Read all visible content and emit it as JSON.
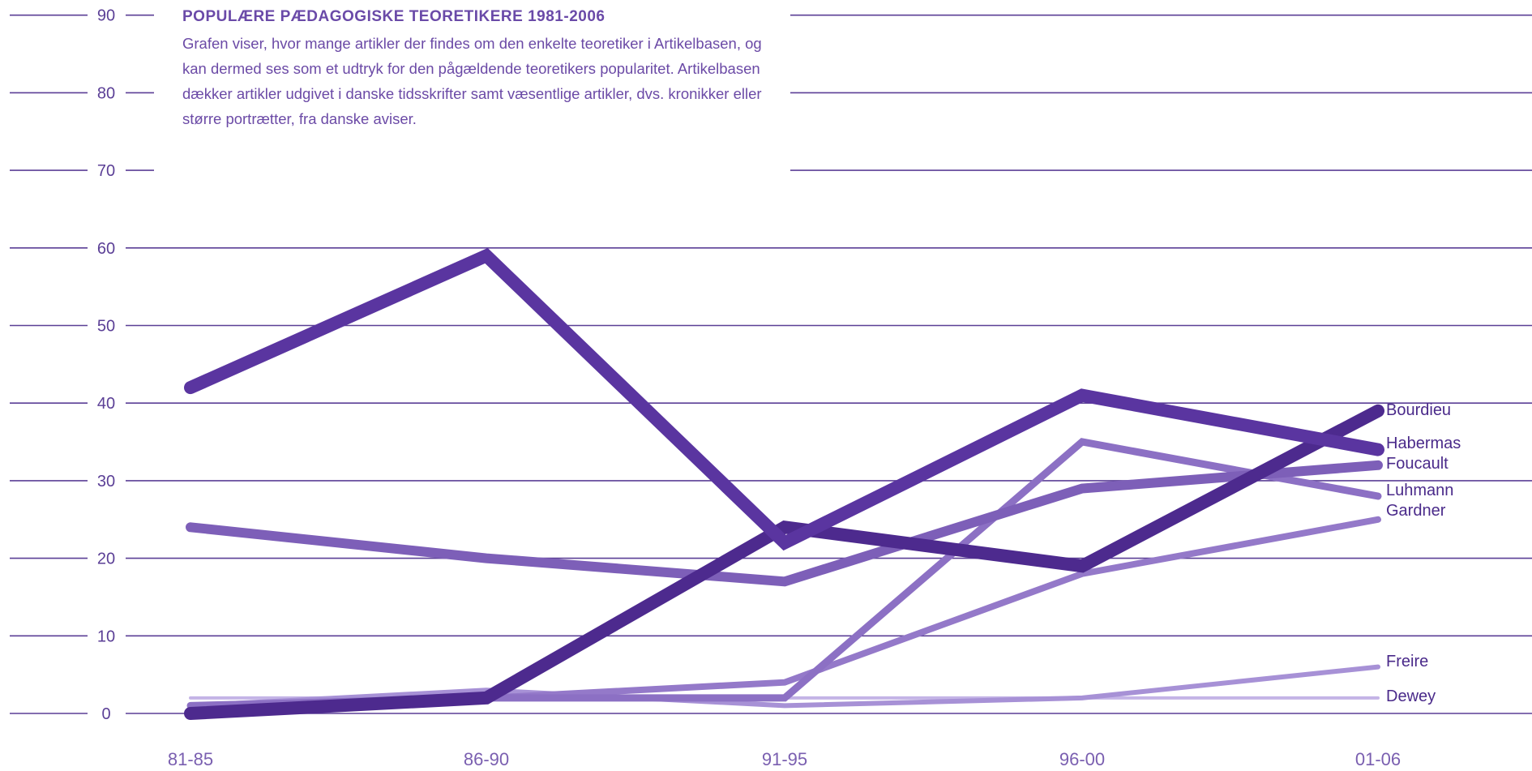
{
  "caption": {
    "title": "POPULÆRE PÆDAGOGISKE TEORETIKERE 1981-2006",
    "text": "Grafen viser, hvor mange artikler der findes om den enkelte teoretiker i Artikelbasen, og kan dermed ses som et udtryk for den pågældende teoretikers popularitet. Artikelbasen dækker artikler udgivet i danske tidsskrifter samt væsentlige artikler, dvs. kronikker eller større portrætter, fra danske aviser."
  },
  "chart_data": {
    "type": "line",
    "title": "POPULÆRE PÆDAGOGISKE TEORETIKERE 1981-2006",
    "categories": [
      "81-85",
      "86-90",
      "91-95",
      "96-00",
      "01-06"
    ],
    "yticks": [
      0,
      10,
      20,
      30,
      40,
      50,
      60,
      70,
      80,
      90
    ],
    "ylim": [
      0,
      90
    ],
    "grid": true,
    "legend": "direct labels at right end of lines",
    "series": [
      {
        "name": "Habermas",
        "values": [
          42,
          59,
          22,
          41,
          34
        ],
        "color": "#5a35a0",
        "width": 16
      },
      {
        "name": "Bourdieu",
        "values": [
          0,
          2,
          24,
          19,
          39
        ],
        "color": "#4d2a8e",
        "width": 16
      },
      {
        "name": "Foucault",
        "values": [
          24,
          20,
          17,
          29,
          32
        ],
        "color": "#7d5fb8",
        "width": 12
      },
      {
        "name": "Luhmann",
        "values": [
          1,
          2,
          2,
          35,
          28
        ],
        "color": "#8c70c4",
        "width": 9
      },
      {
        "name": "Gardner",
        "values": [
          0,
          2,
          4,
          18,
          25
        ],
        "color": "#9479c9",
        "width": 8
      },
      {
        "name": "Freire",
        "values": [
          1,
          3,
          1,
          2,
          6
        ],
        "color": "#a791d6",
        "width": 6
      },
      {
        "name": "Dewey",
        "values": [
          2,
          2,
          2,
          2,
          2
        ],
        "color": "#c4b4e6",
        "width": 4
      }
    ]
  }
}
